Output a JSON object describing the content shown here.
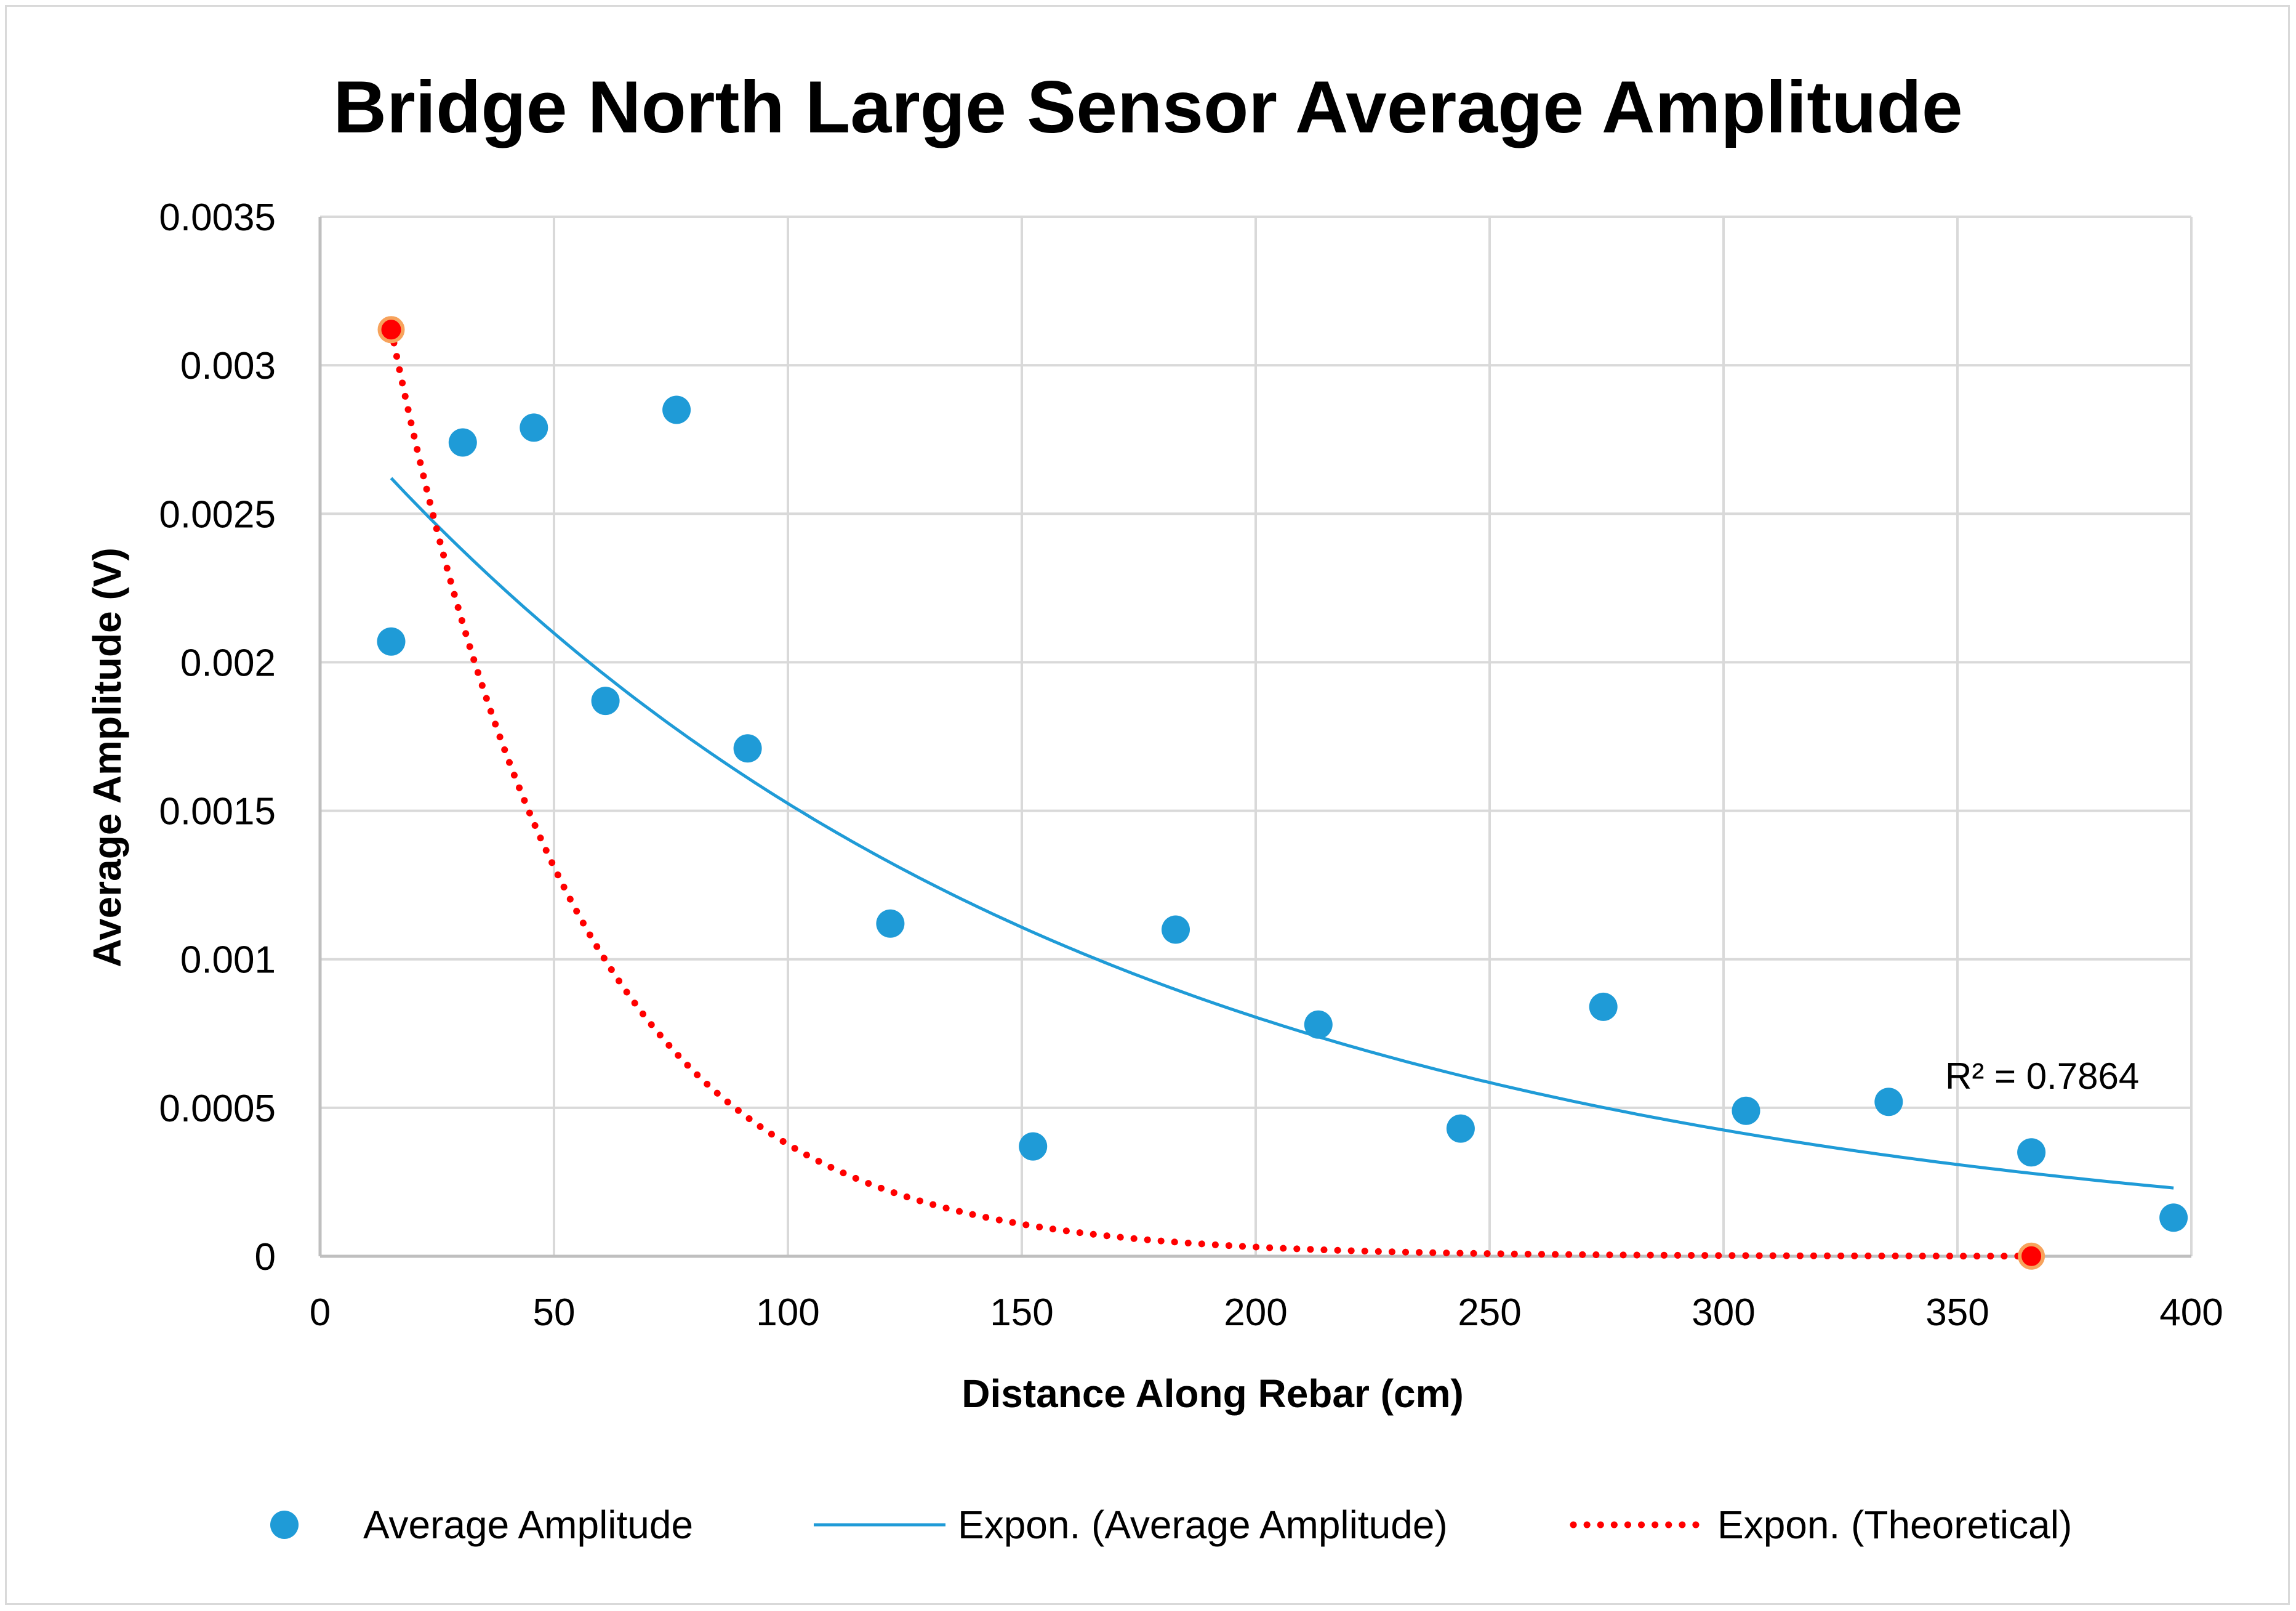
{
  "chart_data": {
    "type": "scatter",
    "title": "Bridge North Large Sensor Average Amplitude",
    "xlabel": "Distance Along Rebar (cm)",
    "ylabel": "Average Amplitude (V)",
    "xlim": [
      0,
      400
    ],
    "ylim": [
      0,
      0.0035
    ],
    "x_ticks": [
      "0",
      "50",
      "100",
      "150",
      "200",
      "250",
      "300",
      "350",
      "400"
    ],
    "y_ticks": [
      "0",
      "0.0005",
      "0.001",
      "0.0015",
      "0.002",
      "0.0025",
      "0.003",
      "0.0035"
    ],
    "grid": true,
    "legend_position": "bottom",
    "series": [
      {
        "name": "Average Amplitude",
        "kind": "scatter",
        "color": "#1f9bd7",
        "x": [
          15.2,
          30.5,
          45.7,
          61,
          76.2,
          91.4,
          121.9,
          152.4,
          182.9,
          213.4,
          243.8,
          274.3,
          304.8,
          335.3,
          365.8,
          396.2
        ],
        "y": [
          0.00207,
          0.00274,
          0.00279,
          0.00187,
          0.00285,
          0.00171,
          0.00112,
          0.00037,
          0.0011,
          0.00078,
          0.00043,
          0.00084,
          0.00049,
          0.00052,
          0.00035,
          0.00013
        ]
      },
      {
        "name": "Expon. (Average Amplitude)",
        "kind": "trendline",
        "style": "solid",
        "color": "#1f9bd7",
        "x_range": [
          15.2,
          396.2
        ],
        "y_at_start": 0.00262,
        "y_at_end": 0.00023,
        "r_squared_label": "R² = 0.7864"
      },
      {
        "name": "Expon. (Theoretical)",
        "kind": "trendline",
        "style": "dotted",
        "color": "#ff0000",
        "x_range": [
          15.2,
          365.8
        ],
        "y_at_start": 0.00312,
        "y_at_end": 5e-07,
        "endpoints": [
          {
            "x": 15.2,
            "y": 0.00312
          },
          {
            "x": 365.8,
            "y": 5e-07
          }
        ],
        "endpoint_color": "#ff0000",
        "endpoint_stroke": "#f7a35c"
      }
    ]
  }
}
